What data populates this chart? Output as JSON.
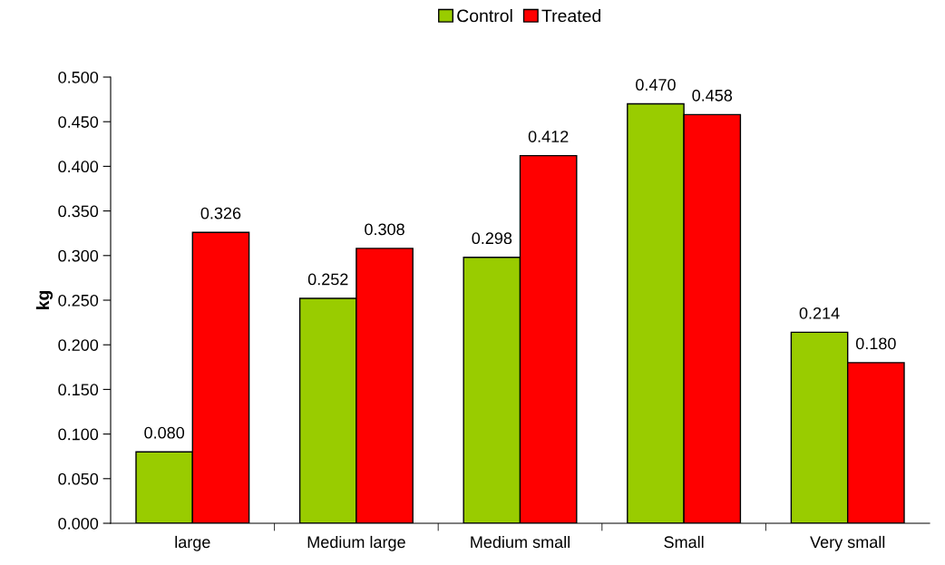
{
  "chart_data": {
    "type": "bar",
    "ylabel": "kg",
    "categories": [
      "large",
      "Medium large",
      "Medium small",
      "Small",
      "Very small"
    ],
    "series": [
      {
        "name": "Control",
        "color": "#99cc00",
        "values": [
          0.08,
          0.252,
          0.298,
          0.47,
          0.214
        ],
        "value_labels": [
          "0.080",
          "0.252",
          "0.298",
          "0.470",
          "0.214"
        ]
      },
      {
        "name": "Treated",
        "color": "#ff0000",
        "values": [
          0.326,
          0.308,
          0.412,
          0.458,
          0.18
        ],
        "value_labels": [
          "0.326",
          "0.308",
          "0.412",
          "0.458",
          "0.180"
        ]
      }
    ],
    "ylim": [
      0,
      0.5
    ],
    "yticks": [
      {
        "value": 0,
        "label": "0.000"
      },
      {
        "value": 0.05,
        "label": "0.050"
      },
      {
        "value": 0.1,
        "label": "0.100"
      },
      {
        "value": 0.15,
        "label": "0.150"
      },
      {
        "value": 0.2,
        "label": "0.200"
      },
      {
        "value": 0.25,
        "label": "0.250"
      },
      {
        "value": 0.3,
        "label": "0.300"
      },
      {
        "value": 0.35,
        "label": "0.350"
      },
      {
        "value": 0.4,
        "label": "0.400"
      },
      {
        "value": 0.45,
        "label": "0.450"
      },
      {
        "value": 0.5,
        "label": "0.500"
      }
    ],
    "grid": false,
    "legend": "top"
  }
}
